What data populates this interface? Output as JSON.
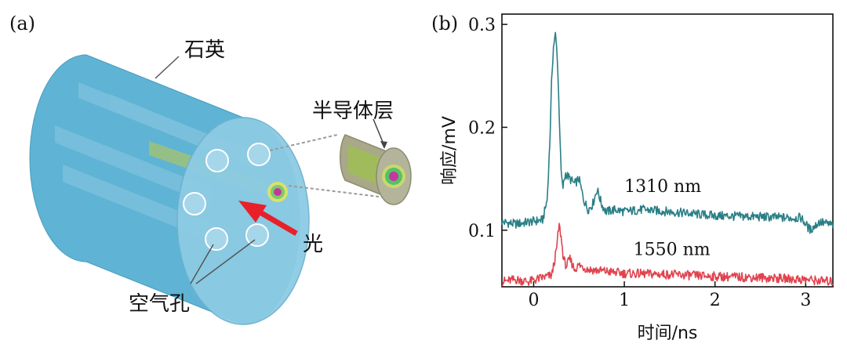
{
  "panel_a": {
    "label": "(a)",
    "callouts": {
      "quartz": "石英",
      "semiconductor_layer": "半导体层",
      "light": "光",
      "air_holes": "空气孔"
    },
    "colors": {
      "fiber_body": "#5fb3d4",
      "fiber_end": "#8ccbe3",
      "core_rod": "#9ec27a",
      "arrow": "#e8202a"
    }
  },
  "panel_b": {
    "label": "(b)"
  },
  "chart_data": {
    "type": "line",
    "title": "",
    "xlabel": "时间/ns",
    "ylabel": "响应/mV",
    "xlim": [
      -0.35,
      3.3
    ],
    "ylim": [
      0.045,
      0.31
    ],
    "xticks": [
      0,
      1,
      2,
      3
    ],
    "yticks": [
      0.1,
      0.2,
      0.3
    ],
    "ytick_labels": [
      "0.1",
      "0.2",
      "0.3"
    ],
    "grid": false,
    "series": [
      {
        "name": "1310 nm",
        "color": "#2a7f86",
        "x": [
          -0.35,
          -0.2,
          -0.05,
          0.1,
          0.15,
          0.18,
          0.2,
          0.22,
          0.24,
          0.26,
          0.28,
          0.3,
          0.32,
          0.35,
          0.4,
          0.45,
          0.5,
          0.55,
          0.6,
          0.65,
          0.7,
          0.75,
          0.8,
          0.9,
          1.0,
          1.2,
          1.5,
          2.0,
          2.5,
          2.8,
          2.95,
          3.05,
          3.15,
          3.3
        ],
        "y": [
          0.108,
          0.106,
          0.108,
          0.11,
          0.13,
          0.19,
          0.25,
          0.28,
          0.29,
          0.27,
          0.22,
          0.16,
          0.14,
          0.155,
          0.15,
          0.145,
          0.15,
          0.13,
          0.12,
          0.125,
          0.14,
          0.125,
          0.118,
          0.12,
          0.118,
          0.12,
          0.118,
          0.114,
          0.113,
          0.112,
          0.112,
          0.1,
          0.108,
          0.105
        ]
      },
      {
        "name": "1550 nm",
        "color": "#e0434f",
        "x": [
          -0.35,
          -0.2,
          -0.05,
          0.1,
          0.2,
          0.25,
          0.28,
          0.3,
          0.33,
          0.36,
          0.4,
          0.45,
          0.5,
          0.6,
          0.8,
          1.0,
          1.5,
          2.0,
          2.5,
          3.0,
          3.3
        ],
        "y": [
          0.05,
          0.052,
          0.05,
          0.054,
          0.056,
          0.08,
          0.105,
          0.095,
          0.072,
          0.065,
          0.072,
          0.062,
          0.066,
          0.062,
          0.06,
          0.058,
          0.057,
          0.055,
          0.054,
          0.052,
          0.05
        ]
      }
    ],
    "annotations": [
      {
        "text": "1310 nm",
        "x": 1.0,
        "y": 0.137
      },
      {
        "text": "1550 nm",
        "x": 1.1,
        "y": 0.076
      }
    ]
  }
}
